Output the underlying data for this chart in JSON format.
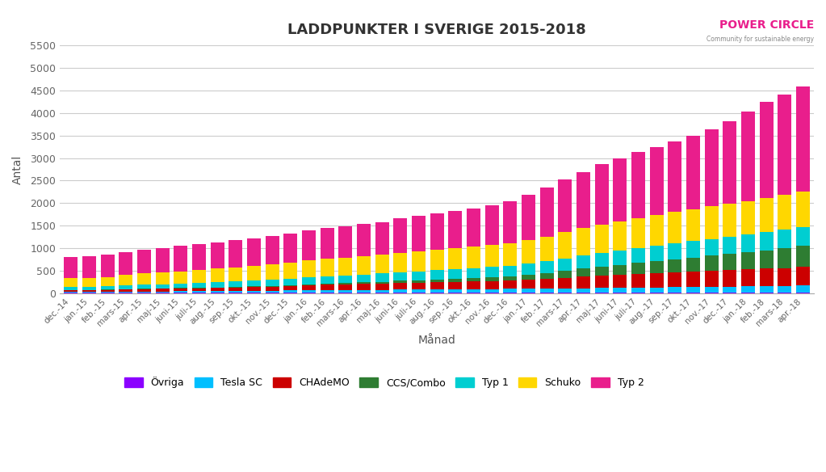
{
  "title": "LADDPUNKTER I SVERIGE 2015-2018",
  "xlabel": "Månad",
  "ylabel": "Antal",
  "logo_text": "POWER CIRCLE",
  "logo_subtext": "Community for sustainable energy",
  "categories": [
    "dec.-14",
    "jan.-15",
    "feb.-15",
    "mars-15",
    "apr.-15",
    "maj-15",
    "juni-15",
    "juli-15",
    "aug.-15",
    "sep.-15",
    "okt.-15",
    "nov.-15",
    "dec.-15",
    "jan.-16",
    "feb.-16",
    "mars-16",
    "apr.-16",
    "maj-16",
    "juni-16",
    "juli-16",
    "aug.-16",
    "sep.-16",
    "okt.-16",
    "nov.-16",
    "dec.-16",
    "jan.-17",
    "feb.-17",
    "mars-17",
    "apr.-17",
    "maj-17",
    "juni-17",
    "juli-17",
    "aug.-17",
    "sep.-17",
    "okt.-17",
    "nov.-17",
    "dec.-17",
    "jan.-18",
    "feb.-18",
    "mars-18",
    "apr.-18"
  ],
  "series": {
    "Övriga": [
      10,
      10,
      10,
      12,
      12,
      12,
      12,
      12,
      12,
      12,
      12,
      12,
      15,
      15,
      15,
      15,
      15,
      15,
      15,
      15,
      15,
      15,
      15,
      15,
      15,
      15,
      15,
      15,
      15,
      15,
      15,
      15,
      15,
      20,
      20,
      20,
      20,
      20,
      20,
      20,
      25
    ],
    "Tesla SC": [
      20,
      22,
      25,
      28,
      30,
      32,
      35,
      38,
      40,
      42,
      45,
      48,
      50,
      55,
      58,
      60,
      62,
      65,
      70,
      72,
      75,
      78,
      80,
      82,
      85,
      88,
      90,
      95,
      100,
      105,
      108,
      112,
      115,
      118,
      122,
      125,
      130,
      135,
      138,
      142,
      148
    ],
    "CHAdeMO": [
      35,
      38,
      45,
      52,
      55,
      58,
      62,
      65,
      72,
      78,
      85,
      92,
      100,
      110,
      118,
      125,
      132,
      140,
      148,
      152,
      158,
      162,
      168,
      172,
      178,
      195,
      210,
      235,
      258,
      278,
      292,
      308,
      320,
      328,
      342,
      355,
      368,
      375,
      390,
      402,
      415
    ],
    "CCS/Combo": [
      5,
      5,
      5,
      6,
      6,
      6,
      8,
      8,
      9,
      10,
      12,
      15,
      18,
      22,
      26,
      30,
      33,
      38,
      45,
      50,
      58,
      68,
      80,
      92,
      105,
      120,
      135,
      155,
      175,
      198,
      218,
      240,
      265,
      288,
      312,
      335,
      358,
      382,
      405,
      432,
      460
    ],
    "Typ 1": [
      65,
      68,
      72,
      80,
      88,
      92,
      96,
      102,
      110,
      118,
      126,
      134,
      142,
      152,
      160,
      168,
      175,
      182,
      192,
      200,
      208,
      212,
      220,
      225,
      232,
      248,
      262,
      278,
      294,
      308,
      320,
      330,
      342,
      352,
      362,
      372,
      382,
      392,
      402,
      412,
      422
    ],
    "Schuko": [
      200,
      205,
      210,
      228,
      248,
      260,
      278,
      292,
      305,
      318,
      330,
      342,
      355,
      372,
      385,
      395,
      405,
      415,
      428,
      438,
      450,
      460,
      470,
      480,
      492,
      520,
      548,
      578,
      602,
      625,
      645,
      662,
      680,
      695,
      708,
      720,
      732,
      745,
      760,
      775,
      790
    ],
    "Typ 2": [
      465,
      478,
      495,
      512,
      528,
      540,
      558,
      568,
      588,
      598,
      612,
      625,
      642,
      668,
      685,
      698,
      712,
      728,
      772,
      788,
      808,
      828,
      848,
      878,
      928,
      1008,
      1078,
      1162,
      1248,
      1332,
      1402,
      1462,
      1512,
      1568,
      1628,
      1718,
      1828,
      1980,
      2130,
      2230,
      2330
    ]
  },
  "colors": {
    "Övriga": "#8B00FF",
    "Tesla SC": "#00BFFF",
    "CHAdeMO": "#CC0000",
    "CCS/Combo": "#2E7D32",
    "Typ 1": "#00CED1",
    "Schuko": "#FFD700",
    "Typ 2": "#E91E8C"
  },
  "ylim": [
    0,
    5500
  ],
  "yticks": [
    0,
    500,
    1000,
    1500,
    2000,
    2500,
    3000,
    3500,
    4000,
    4500,
    5000,
    5500
  ],
  "background_color": "#ffffff",
  "grid_color": "#cccccc"
}
